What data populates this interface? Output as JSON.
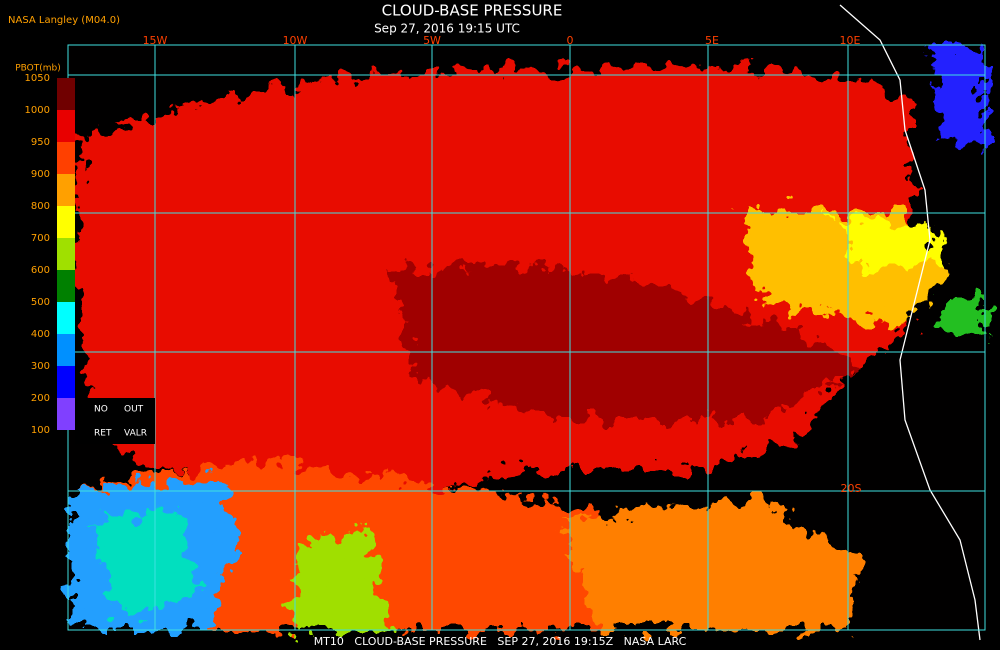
{
  "header": {
    "source": "NASA Langley (M04.0)",
    "title": "CLOUD-BASE PRESSURE",
    "subtitle": "Sep 27, 2016 19:15 UTC"
  },
  "grid_labels": {
    "longitudes": [
      "15W",
      "10W",
      "5W",
      "0",
      "5E",
      "10E"
    ],
    "latitude": "20S"
  },
  "legend": {
    "title": "PBOT(mb)",
    "ticks": [
      1050,
      1000,
      950,
      900,
      800,
      700,
      600,
      500,
      400,
      300,
      200,
      100
    ],
    "colors": [
      "#700000",
      "#e80000",
      "#ff4000",
      "#ffa000",
      "#ffff00",
      "#a0e000",
      "#008000",
      "#00ffff",
      "#0090ff",
      "#0000ff",
      "#8040ff"
    ],
    "notes": [
      "NO",
      "OUT",
      "RET",
      "VALR"
    ]
  },
  "footer": "MT10   CLOUD-BASE PRESSURE   SEP 27, 2016 19:15Z   NASA LARC"
}
